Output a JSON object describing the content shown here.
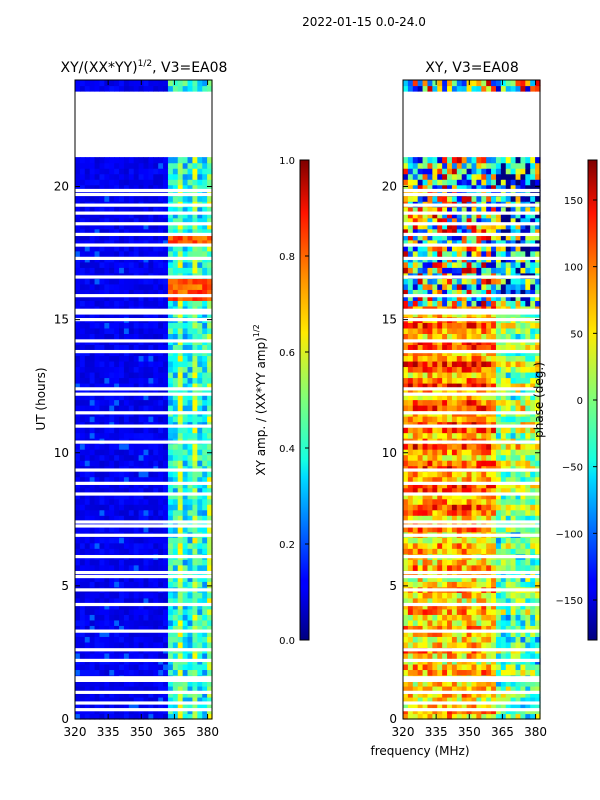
{
  "suptitle": "2022-01-15 0.0-24.0",
  "colors": {
    "cmap": "jet",
    "frame": "#000000",
    "gap": "#ffffff"
  },
  "chart_data": [
    {
      "type": "heatmap",
      "title_main": "XY/(XX*YY)",
      "title_sup": "1/2",
      "title_tail": ", V3=EA08",
      "ylabel": "UT (hours)",
      "xlabel": "",
      "xlim": [
        320,
        382
      ],
      "ylim": [
        0,
        24
      ],
      "xticks": [
        320,
        335,
        350,
        365,
        380
      ],
      "xtick_labels": [
        "320",
        "335",
        "350",
        "365",
        "380"
      ],
      "yticks": [
        0,
        5,
        10,
        15,
        20
      ],
      "ytick_labels": [
        "0",
        "5",
        "10",
        "15",
        "20"
      ],
      "colorbar": {
        "label_main": "XY amp. / (XX*YY amp)",
        "label_sup": "1/2",
        "range": [
          0.0,
          1.0
        ],
        "ticks": [
          0.0,
          0.2,
          0.4,
          0.6,
          0.8,
          1.0
        ],
        "tick_labels": [
          "0.0",
          "0.2",
          "0.4",
          "0.6",
          "0.8",
          "1.0"
        ]
      },
      "missing_time_ranges": [
        [
          21.2,
          23.55
        ]
      ],
      "bright_channel_band": [
        363,
        382
      ]
    },
    {
      "type": "heatmap",
      "title": "XY, V3=EA08",
      "xlabel": "frequency (MHz)",
      "xlim": [
        320,
        382
      ],
      "ylim": [
        0,
        24
      ],
      "xticks": [
        320,
        335,
        350,
        365,
        380
      ],
      "xtick_labels": [
        "320",
        "335",
        "350",
        "365",
        "380"
      ],
      "yticks": [
        0,
        5,
        10,
        15,
        20
      ],
      "ytick_labels": [
        "0",
        "5",
        "10",
        "15",
        "20"
      ],
      "colorbar": {
        "label": "phase (deg.)",
        "range": [
          -180,
          180
        ],
        "ticks": [
          -150,
          -100,
          -50,
          0,
          50,
          100,
          150
        ],
        "tick_labels": [
          "−150",
          "−100",
          "−50",
          "0",
          "50",
          "100",
          "150"
        ]
      },
      "missing_time_ranges": [
        [
          21.2,
          23.55
        ]
      ]
    }
  ]
}
